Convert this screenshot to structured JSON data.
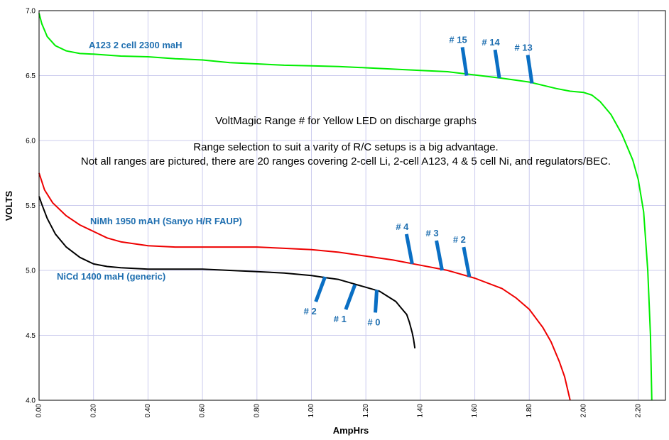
{
  "chart_data": {
    "type": "line",
    "title": "VoltMagic Range # for Yellow LED on discharge graphs",
    "annotations": [
      "Range selection to suit a varity of R/C setups is a big advantage.",
      "Not all ranges are pictured, there are 20 ranges covering 2-cell Li, 2-cell A123, 4 & 5 cell Ni, and regulators/BEC."
    ],
    "xlabel": "AmpHrs",
    "ylabel": "VOLTS",
    "xlim": [
      0,
      2.3
    ],
    "ylim": [
      4.0,
      7.0
    ],
    "x_ticks": [
      "0.00",
      "0.20",
      "0.40",
      "0.60",
      "0.80",
      "1.00",
      "1.20",
      "1.40",
      "1.60",
      "1.80",
      "2.00",
      "2.20"
    ],
    "y_ticks": [
      "4.0",
      "4.5",
      "5.0",
      "5.5",
      "6.0",
      "6.5",
      "7.0"
    ],
    "grid": true,
    "series": [
      {
        "name": "A123 2 cell 2300 maH",
        "color": "#00ee00",
        "x": [
          0.0,
          0.01,
          0.03,
          0.06,
          0.1,
          0.15,
          0.2,
          0.3,
          0.4,
          0.5,
          0.6,
          0.7,
          0.8,
          0.9,
          1.0,
          1.1,
          1.2,
          1.3,
          1.4,
          1.5,
          1.6,
          1.7,
          1.8,
          1.9,
          1.95,
          2.0,
          2.03,
          2.06,
          2.1,
          2.14,
          2.18,
          2.2,
          2.22,
          2.235,
          2.245,
          2.25
        ],
        "y": [
          6.98,
          6.9,
          6.8,
          6.73,
          6.69,
          6.67,
          6.665,
          6.65,
          6.645,
          6.63,
          6.62,
          6.6,
          6.59,
          6.58,
          6.575,
          6.57,
          6.56,
          6.55,
          6.54,
          6.53,
          6.505,
          6.48,
          6.45,
          6.4,
          6.38,
          6.37,
          6.35,
          6.3,
          6.2,
          6.05,
          5.85,
          5.7,
          5.45,
          5.0,
          4.5,
          4.0
        ]
      },
      {
        "name": "NiMh 1950 mAH (Sanyo H/R FAUP)",
        "color": "#ee0000",
        "x": [
          0.0,
          0.02,
          0.05,
          0.1,
          0.15,
          0.2,
          0.25,
          0.3,
          0.4,
          0.5,
          0.6,
          0.7,
          0.8,
          0.9,
          1.0,
          1.1,
          1.2,
          1.3,
          1.4,
          1.5,
          1.6,
          1.7,
          1.75,
          1.8,
          1.85,
          1.88,
          1.91,
          1.93,
          1.95
        ],
        "y": [
          5.75,
          5.62,
          5.52,
          5.42,
          5.35,
          5.3,
          5.25,
          5.22,
          5.19,
          5.18,
          5.18,
          5.18,
          5.18,
          5.17,
          5.16,
          5.14,
          5.11,
          5.08,
          5.04,
          5.0,
          4.94,
          4.86,
          4.79,
          4.7,
          4.56,
          4.45,
          4.3,
          4.18,
          4.0
        ]
      },
      {
        "name": "NiCd 1400 maH (generic)",
        "color": "#000000",
        "x": [
          0.0,
          0.01,
          0.03,
          0.06,
          0.1,
          0.15,
          0.2,
          0.25,
          0.3,
          0.4,
          0.5,
          0.6,
          0.7,
          0.8,
          0.9,
          1.0,
          1.05,
          1.1,
          1.15,
          1.2,
          1.25,
          1.28,
          1.31,
          1.33,
          1.35,
          1.36,
          1.37,
          1.375,
          1.38
        ],
        "y": [
          5.57,
          5.51,
          5.4,
          5.28,
          5.18,
          5.1,
          5.05,
          5.03,
          5.02,
          5.01,
          5.01,
          5.01,
          5.0,
          4.99,
          4.98,
          4.96,
          4.945,
          4.93,
          4.9,
          4.87,
          4.84,
          4.8,
          4.76,
          4.71,
          4.66,
          4.6,
          4.52,
          4.47,
          4.4
        ]
      }
    ],
    "markers": [
      {
        "label": "# 15",
        "series": "A123 2 cell 2300 maH",
        "x": 1.57,
        "y": 6.5
      },
      {
        "label": "# 14",
        "series": "A123 2 cell 2300 maH",
        "x": 1.69,
        "y": 6.48
      },
      {
        "label": "# 13",
        "series": "A123 2 cell 2300 maH",
        "x": 1.81,
        "y": 6.44
      },
      {
        "label": "# 4",
        "series": "NiMh 1950 mAH (Sanyo H/R FAUP)",
        "x": 1.37,
        "y": 5.05
      },
      {
        "label": "# 3",
        "series": "NiMh 1950 mAH (Sanyo H/R FAUP)",
        "x": 1.48,
        "y": 5.0
      },
      {
        "label": "# 2",
        "series": "NiMh 1950 mAH (Sanyo H/R FAUP)",
        "x": 1.58,
        "y": 4.95
      },
      {
        "label": "# 2",
        "series": "NiCd 1400 maH (generic)",
        "x": 1.05,
        "y": 4.95
      },
      {
        "label": "# 1",
        "series": "NiCd 1400 maH (generic)",
        "x": 1.16,
        "y": 4.89
      },
      {
        "label": "# 0",
        "series": "NiCd 1400 maH (generic)",
        "x": 1.24,
        "y": 4.85
      }
    ]
  },
  "colors": {
    "grid": "#ccccee",
    "label_blue": "#1f6fb0",
    "marker_blue": "#0a6fc4"
  }
}
